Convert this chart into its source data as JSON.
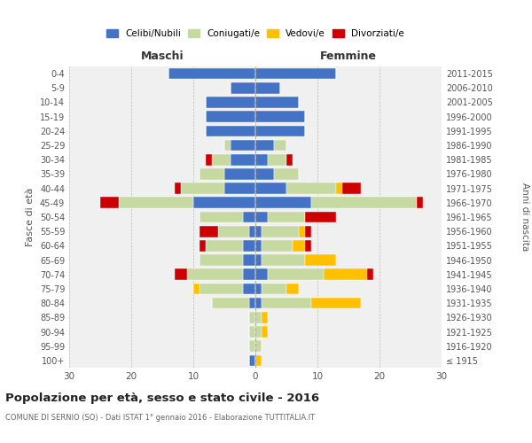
{
  "age_groups": [
    "100+",
    "95-99",
    "90-94",
    "85-89",
    "80-84",
    "75-79",
    "70-74",
    "65-69",
    "60-64",
    "55-59",
    "50-54",
    "45-49",
    "40-44",
    "35-39",
    "30-34",
    "25-29",
    "20-24",
    "15-19",
    "10-14",
    "5-9",
    "0-4"
  ],
  "birth_years": [
    "≤ 1915",
    "1916-1920",
    "1921-1925",
    "1926-1930",
    "1931-1935",
    "1936-1940",
    "1941-1945",
    "1946-1950",
    "1951-1955",
    "1956-1960",
    "1961-1965",
    "1966-1970",
    "1971-1975",
    "1976-1980",
    "1981-1985",
    "1986-1990",
    "1991-1995",
    "1996-2000",
    "2001-2005",
    "2006-2010",
    "2011-2015"
  ],
  "colors": {
    "celibi": "#4472c4",
    "coniugati": "#c5d9a0",
    "vedovi": "#ffc000",
    "divorziati": "#cc0000"
  },
  "maschi": {
    "celibi": [
      1,
      0,
      0,
      0,
      1,
      2,
      2,
      2,
      2,
      1,
      2,
      10,
      5,
      5,
      4,
      4,
      8,
      8,
      8,
      4,
      14
    ],
    "coniugati": [
      0,
      1,
      1,
      1,
      6,
      7,
      9,
      7,
      6,
      5,
      7,
      12,
      7,
      4,
      3,
      1,
      0,
      0,
      0,
      0,
      0
    ],
    "vedovi": [
      0,
      0,
      0,
      0,
      0,
      1,
      0,
      0,
      0,
      0,
      0,
      0,
      0,
      0,
      0,
      0,
      0,
      0,
      0,
      0,
      0
    ],
    "divorziati": [
      0,
      0,
      0,
      0,
      0,
      0,
      2,
      0,
      1,
      3,
      0,
      3,
      1,
      0,
      1,
      0,
      0,
      0,
      0,
      0,
      0
    ]
  },
  "femmine": {
    "celibi": [
      0,
      0,
      0,
      0,
      1,
      1,
      2,
      1,
      1,
      1,
      2,
      9,
      5,
      3,
      2,
      3,
      8,
      8,
      7,
      4,
      13
    ],
    "coniugati": [
      0,
      1,
      1,
      1,
      8,
      4,
      9,
      7,
      5,
      6,
      6,
      17,
      8,
      4,
      3,
      2,
      0,
      0,
      0,
      0,
      0
    ],
    "vedovi": [
      1,
      0,
      1,
      1,
      8,
      2,
      7,
      5,
      2,
      1,
      0,
      0,
      1,
      0,
      0,
      0,
      0,
      0,
      0,
      0,
      0
    ],
    "divorziati": [
      0,
      0,
      0,
      0,
      0,
      0,
      1,
      0,
      1,
      1,
      5,
      1,
      3,
      0,
      1,
      0,
      0,
      0,
      0,
      0,
      0
    ]
  },
  "xlim": 30,
  "title": "Popolazione per età, sesso e stato civile - 2016",
  "subtitle": "COMUNE DI SERNIO (SO) - Dati ISTAT 1° gennaio 2016 - Elaborazione TUTTITALIA.IT",
  "xlabel_left": "Maschi",
  "xlabel_right": "Femmine",
  "ylabel": "Fasce di età",
  "ylabel_right": "Anni di nascita",
  "legend_labels": [
    "Celibi/Nubili",
    "Coniugati/e",
    "Vedovi/e",
    "Divorziati/e"
  ],
  "bg_color": "#ffffff",
  "grid_color": "#cccccc",
  "ax_bg_color": "#f0f0f0"
}
